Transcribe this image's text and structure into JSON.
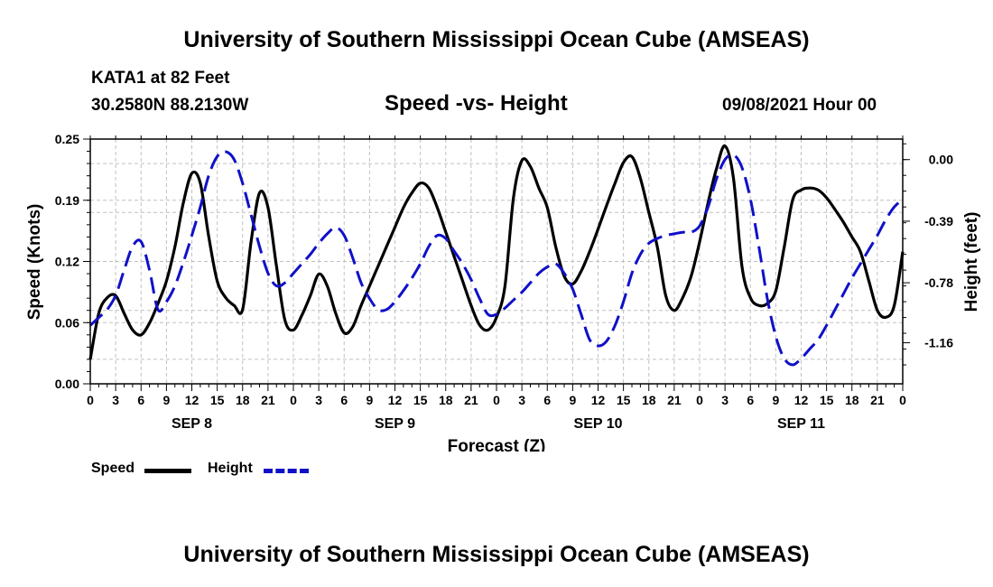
{
  "header": {
    "title_top": "University of Southern Mississippi Ocean Cube (AMSEAS)",
    "title_bottom": "University of Southern Mississippi Ocean Cube (AMSEAS)",
    "station": "KATA1 at 82 Feet",
    "coords": "30.2580N  88.2130W",
    "subtitle": "Speed -vs- Height",
    "datetime": "09/08/2021 Hour 00"
  },
  "legend": {
    "speed_label": "Speed",
    "height_label": "Height"
  },
  "colors": {
    "speed": "#000000",
    "height": "#1010c8",
    "grid": "#c0c0c0"
  },
  "chart_data": {
    "type": "line",
    "title": "Speed -vs- Height",
    "xlabel": "Forecast (Z)",
    "ylabel": "Speed (Knots)",
    "y2label": "Height (feet)",
    "ylim": [
      0,
      0.25
    ],
    "y2lim": [
      -1.42,
      0.13
    ],
    "xlim": [
      0,
      96
    ],
    "y_ticks": [
      "0.00",
      "0.06",
      "0.12",
      "0.19",
      "0.25"
    ],
    "y_tick_values": [
      0,
      0.0625,
      0.125,
      0.1875,
      0.25
    ],
    "y2_ticks": [
      "0.00",
      "-0.39",
      "-0.78",
      "-1.16"
    ],
    "y2_tick_values": [
      0,
      -0.39,
      -0.78,
      -1.16
    ],
    "x_tick_labels": [
      "0",
      "3",
      "6",
      "9",
      "12",
      "15",
      "18",
      "21",
      "0",
      "3",
      "6",
      "9",
      "12",
      "15",
      "18",
      "21",
      "0",
      "3",
      "6",
      "9",
      "12",
      "15",
      "18",
      "21",
      "0",
      "3",
      "6",
      "9",
      "12",
      "15",
      "18",
      "21",
      "0"
    ],
    "x_tick_hours": [
      0,
      3,
      6,
      9,
      12,
      15,
      18,
      21,
      24,
      27,
      30,
      33,
      36,
      39,
      42,
      45,
      48,
      51,
      54,
      57,
      60,
      63,
      66,
      69,
      72,
      75,
      78,
      81,
      84,
      87,
      90,
      93,
      96
    ],
    "day_labels": [
      "SEP 8",
      "SEP 9",
      "SEP 10",
      "SEP 11"
    ],
    "day_label_hours": [
      12,
      36,
      60,
      84
    ],
    "grid": true,
    "series": [
      {
        "name": "Speed",
        "style": "solid",
        "axis": "left",
        "x": [
          0,
          1,
          2,
          3,
          4,
          5,
          6,
          7,
          8,
          9,
          10,
          11,
          12,
          13,
          14,
          15,
          16,
          17,
          18,
          19,
          20,
          21,
          22,
          23,
          24,
          25,
          26,
          27,
          28,
          29,
          30,
          31,
          32,
          33,
          34,
          35,
          36,
          37,
          38,
          39,
          40,
          41,
          42,
          43,
          44,
          45,
          46,
          47,
          48,
          49,
          50,
          51,
          52,
          53,
          54,
          55,
          56,
          57,
          58,
          59,
          60,
          61,
          62,
          63,
          64,
          65,
          66,
          67,
          68,
          69,
          70,
          71,
          72,
          73,
          74,
          75,
          76,
          77,
          78,
          79,
          80,
          81,
          82,
          83,
          84,
          85,
          86,
          87,
          88,
          89,
          90,
          91,
          92,
          93,
          94,
          95,
          96
        ],
        "values": [
          0.025,
          0.072,
          0.088,
          0.09,
          0.072,
          0.055,
          0.05,
          0.062,
          0.082,
          0.105,
          0.14,
          0.185,
          0.215,
          0.205,
          0.15,
          0.105,
          0.088,
          0.08,
          0.076,
          0.145,
          0.195,
          0.18,
          0.12,
          0.065,
          0.055,
          0.07,
          0.09,
          0.112,
          0.1,
          0.072,
          0.052,
          0.058,
          0.08,
          0.1,
          0.12,
          0.14,
          0.16,
          0.18,
          0.195,
          0.205,
          0.2,
          0.18,
          0.155,
          0.13,
          0.105,
          0.08,
          0.06,
          0.055,
          0.068,
          0.1,
          0.19,
          0.228,
          0.222,
          0.2,
          0.18,
          0.14,
          0.11,
          0.102,
          0.115,
          0.135,
          0.158,
          0.182,
          0.205,
          0.226,
          0.232,
          0.21,
          0.175,
          0.14,
          0.09,
          0.075,
          0.088,
          0.11,
          0.145,
          0.185,
          0.22,
          0.243,
          0.21,
          0.12,
          0.088,
          0.08,
          0.082,
          0.095,
          0.14,
          0.188,
          0.198,
          0.2,
          0.198,
          0.19,
          0.178,
          0.165,
          0.15,
          0.135,
          0.105,
          0.075,
          0.068,
          0.08,
          0.135
        ]
      },
      {
        "name": "Height",
        "style": "dashed",
        "axis": "right",
        "x": [
          0,
          1,
          2,
          3,
          4,
          5,
          6,
          7,
          8,
          9,
          10,
          11,
          12,
          13,
          14,
          15,
          16,
          17,
          18,
          19,
          20,
          21,
          22,
          23,
          24,
          25,
          26,
          27,
          28,
          29,
          30,
          31,
          32,
          33,
          34,
          35,
          36,
          37,
          38,
          39,
          40,
          41,
          42,
          43,
          44,
          45,
          46,
          47,
          48,
          49,
          50,
          51,
          52,
          53,
          54,
          55,
          56,
          57,
          58,
          59,
          60,
          61,
          62,
          63,
          64,
          65,
          66,
          67,
          68,
          69,
          70,
          71,
          72,
          73,
          74,
          75,
          76,
          77,
          78,
          79,
          80,
          81,
          82,
          83,
          84,
          85,
          86,
          87,
          88,
          89,
          90,
          91,
          92,
          93,
          94,
          95,
          96
        ],
        "values": [
          -1.05,
          -1.0,
          -0.95,
          -0.86,
          -0.7,
          -0.55,
          -0.52,
          -0.7,
          -0.95,
          -0.9,
          -0.8,
          -0.65,
          -0.48,
          -0.3,
          -0.1,
          0.02,
          0.05,
          0.0,
          -0.15,
          -0.35,
          -0.55,
          -0.72,
          -0.8,
          -0.78,
          -0.72,
          -0.66,
          -0.6,
          -0.53,
          -0.47,
          -0.43,
          -0.48,
          -0.62,
          -0.78,
          -0.88,
          -0.95,
          -0.95,
          -0.9,
          -0.83,
          -0.75,
          -0.66,
          -0.55,
          -0.48,
          -0.5,
          -0.58,
          -0.66,
          -0.76,
          -0.88,
          -0.98,
          -0.98,
          -0.94,
          -0.89,
          -0.84,
          -0.78,
          -0.72,
          -0.68,
          -0.66,
          -0.72,
          -0.82,
          -0.98,
          -1.14,
          -1.18,
          -1.15,
          -1.05,
          -0.9,
          -0.72,
          -0.6,
          -0.53,
          -0.5,
          -0.48,
          -0.47,
          -0.46,
          -0.46,
          -0.42,
          -0.3,
          -0.12,
          0.0,
          0.03,
          -0.05,
          -0.25,
          -0.55,
          -0.88,
          -1.12,
          -1.26,
          -1.3,
          -1.26,
          -1.2,
          -1.14,
          -1.05,
          -0.95,
          -0.85,
          -0.75,
          -0.66,
          -0.57,
          -0.48,
          -0.38,
          -0.3,
          -0.25
        ]
      }
    ]
  }
}
